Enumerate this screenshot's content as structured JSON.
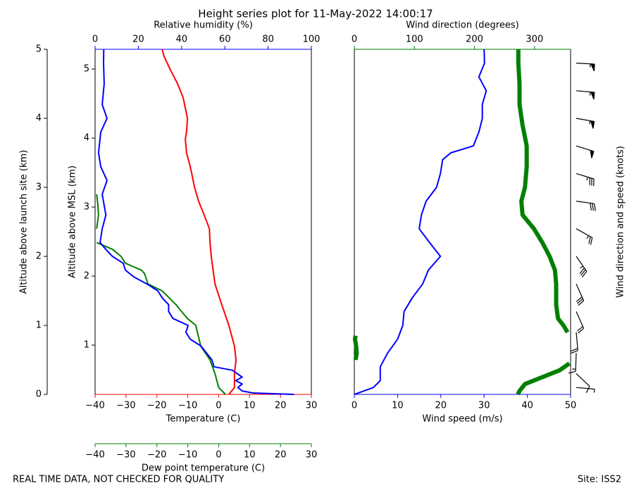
{
  "title": "Height series plot for 11-May-2022 14:00:17",
  "footer_left": "REAL TIME DATA, NOT CHECKED FOR QUALITY",
  "footer_right": "Site: ISS2",
  "chart_data": [
    {
      "type": "line",
      "xlabel": "Temperature (C)",
      "x2label": "Relative humidity (%)",
      "x3label": "Dew point temperature (C)",
      "ylabel": "Altitude above launch site (km)",
      "y2label": "Altitude above MSL (km)",
      "xlim": [
        -40,
        30
      ],
      "xticks": [
        {
          "value": -40,
          "label": "−40"
        },
        {
          "value": -30,
          "label": "−30"
        },
        {
          "value": -20,
          "label": "−20"
        },
        {
          "value": -10,
          "label": "−10"
        },
        0,
        10,
        20,
        30
      ],
      "x2lim": [
        0,
        100
      ],
      "x2ticks": [
        0,
        20,
        40,
        60,
        80,
        100
      ],
      "x3lim": [
        -40,
        30
      ],
      "x3ticks": [
        {
          "value": -40,
          "label": "−40"
        },
        {
          "value": -30,
          "label": "−30"
        },
        {
          "value": -20,
          "label": "−20"
        },
        {
          "value": -10,
          "label": "−10"
        },
        0,
        10,
        20,
        30
      ],
      "ylim": [
        0,
        5
      ],
      "yticks": [
        0,
        1,
        2,
        3,
        4,
        5
      ],
      "y2lim": [
        0.286,
        5.286
      ],
      "y2ticks": [
        1,
        2,
        3,
        4,
        5
      ],
      "xcolor": "#ff0000",
      "x2color": "#0000ff",
      "x3color": "#008000",
      "series": [
        {
          "axis": "x",
          "color": "#ff0000",
          "y": [
            0,
            0.1,
            0.3,
            0.5,
            0.7,
            1.0,
            1.3,
            1.6,
            2.0,
            2.2,
            2.4,
            2.6,
            2.8,
            3.0,
            3.3,
            3.5,
            3.7,
            3.8,
            4.0,
            4.3,
            4.5,
            4.7,
            4.9,
            5.0
          ],
          "values": [
            3.3,
            5.1,
            5.1,
            5.6,
            5.1,
            3.3,
            1.0,
            -1.2,
            -2.4,
            -2.8,
            -3.0,
            -4.7,
            -6.5,
            -7.8,
            -9.2,
            -10.4,
            -10.8,
            -10.4,
            -10.1,
            -11.5,
            -13.3,
            -15.6,
            -17.7,
            -18.3
          ]
        },
        {
          "axis": "x3",
          "color": "#008000",
          "y": [
            0,
            0.1,
            0.3,
            0.5,
            0.7,
            0.9,
            1.0,
            1.1,
            1.2,
            1.3,
            1.5,
            1.6,
            1.75,
            1.8,
            1.9,
            2.0,
            2.1,
            2.2,
            2.3,
            2.4,
            2.6,
            2.75,
            2.9
          ],
          "values": [
            2.2,
            0,
            -1.2,
            -2.8,
            -5.8,
            -6.9,
            -7.4,
            -10.1,
            -12,
            -13.8,
            -18.3,
            -22.9,
            -24,
            -25,
            -30.2,
            -31.6,
            -34.3,
            -39.5,
            null,
            -39.5,
            -38.9,
            -39.1,
            -39.5
          ]
        },
        {
          "axis": "x2",
          "color": "#0000ff",
          "y": [
            0,
            0.02,
            0.05,
            0.1,
            0.15,
            0.2,
            0.25,
            0.35,
            0.4,
            0.5,
            0.7,
            0.8,
            0.9,
            1.0,
            1.1,
            1.2,
            1.3,
            1.4,
            1.5,
            1.6,
            1.7,
            1.8,
            1.9,
            2.0,
            2.1,
            2.2,
            2.4,
            2.6,
            2.9,
            3.1,
            3.3,
            3.5,
            3.8,
            4.0,
            4.2,
            4.5,
            4.8,
            5.0
          ],
          "values": [
            92,
            73,
            68,
            66,
            68,
            65,
            68,
            63.5,
            55,
            54,
            49,
            44,
            42,
            43,
            36,
            34,
            34,
            31,
            29,
            24,
            18,
            14,
            13,
            8,
            5,
            2.3,
            3.3,
            5,
            3.3,
            5.5,
            2.6,
            1.6,
            2.6,
            5.5,
            3.3,
            4.2,
            3.9,
            4
          ]
        }
      ]
    },
    {
      "type": "line",
      "xlabel": "Wind speed (m/s)",
      "x2label": "Wind direction (degrees)",
      "barblabel": "Wind direction and speed (knots)",
      "xlim": [
        0,
        50
      ],
      "xticks": [
        0,
        10,
        20,
        30,
        40,
        50
      ],
      "x2lim": [
        0,
        360
      ],
      "x2ticks": [
        0,
        100,
        200,
        300
      ],
      "ylim": [
        0,
        5
      ],
      "xcolor": "#0000ff",
      "x2color": "#008000",
      "series": [
        {
          "axis": "x",
          "color": "#0000ff",
          "y": [
            0,
            0.1,
            0.2,
            0.4,
            0.6,
            0.8,
            1.0,
            1.2,
            1.4,
            1.6,
            1.8,
            2.0,
            2.2,
            2.4,
            2.6,
            2.8,
            3.0,
            3.2,
            3.4,
            3.5,
            3.6,
            3.8,
            4.0,
            4.2,
            4.4,
            4.6,
            4.8,
            5.0
          ],
          "values": [
            0,
            4.4,
            6,
            6,
            7.7,
            10,
            11.2,
            11.5,
            13.4,
            15.8,
            17.1,
            19.9,
            17.4,
            15,
            15.5,
            16.6,
            19,
            19.9,
            20.4,
            22.3,
            27.5,
            28.8,
            29.6,
            29.6,
            30.5,
            28.8,
            30.1,
            30
          ]
        },
        {
          "axis": "x2",
          "color": "#008000",
          "y": [
            0,
            0.05,
            0.15,
            0.25,
            0.35,
            0.45,
            0.48,
            0.5,
            0.6,
            0.7,
            0.8,
            0.85,
            0.88,
            0.9,
            1.0,
            1.1,
            1.3,
            1.6,
            1.8,
            2.0,
            2.2,
            2.4,
            2.6,
            2.8,
            3.0,
            3.3,
            3.6,
            3.9,
            4.2,
            4.5,
            4.8,
            5.0
          ],
          "values": [
            272,
            275,
            284,
            313,
            342,
            358,
            null,
            2,
            4,
            3,
            1,
            2,
            null,
            355,
            348,
            339,
            336,
            336,
            334,
            325,
            313,
            299,
            280,
            278,
            284,
            287,
            287,
            280,
            275,
            275,
            273,
            273
          ]
        }
      ],
      "barbs": {
        "y": [
          0.1,
          0.3,
          0.6,
          0.9,
          1.2,
          1.6,
          2.0,
          2.4,
          2.8,
          3.2,
          3.6,
          4.0,
          4.4,
          4.8
        ],
        "direction": [
          275,
          313,
          2,
          355,
          336,
          336,
          325,
          299,
          278,
          287,
          287,
          280,
          275,
          273
        ],
        "speed": [
          9,
          12,
          15,
          20,
          22,
          31,
          39,
          29,
          32,
          39,
          53,
          58,
          59,
          58
        ]
      }
    }
  ]
}
